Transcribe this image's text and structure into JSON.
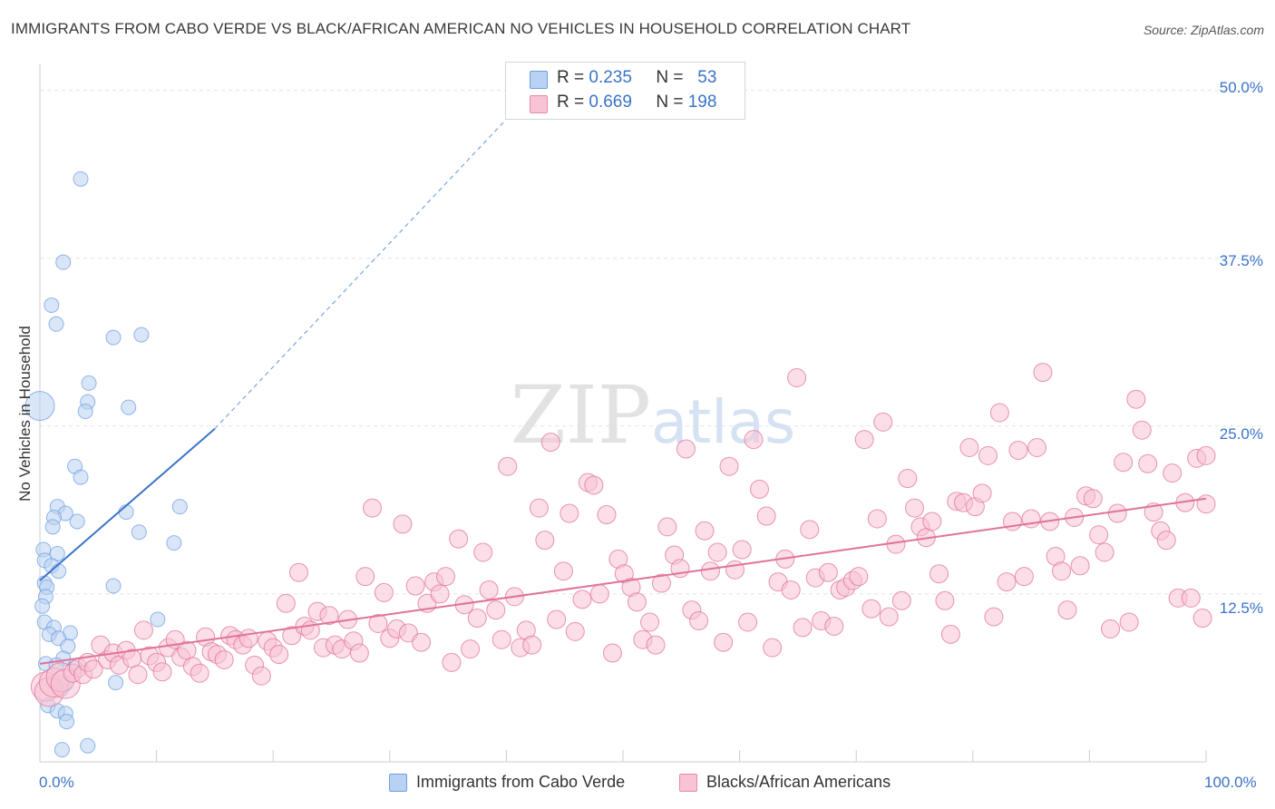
{
  "header": {
    "title": "IMMIGRANTS FROM CABO VERDE VS BLACK/AFRICAN AMERICAN NO VEHICLES IN HOUSEHOLD CORRELATION CHART",
    "source": "Source: ZipAtlas.com"
  },
  "watermark": "ZIPatlas",
  "legend": {
    "r_label": "R =",
    "n_label": "N =",
    "rows": [
      {
        "r": "0.235",
        "n": "53",
        "color": "#b9d1f3",
        "border": "#6f9fe0"
      },
      {
        "r": "0.669",
        "n": "198",
        "color": "#f8c3d4",
        "border": "#e889a8"
      }
    ]
  },
  "bottom_legend": [
    {
      "label": "Immigrants from Cabo Verde"
    },
    {
      "label": "Blacks/African Americans"
    }
  ],
  "chart_data": {
    "type": "scatter",
    "title": "IMMIGRANTS FROM CABO VERDE VS BLACK/AFRICAN AMERICAN NO VEHICLES IN HOUSEHOLD CORRELATION CHART",
    "xlabel": "",
    "ylabel": "No Vehicles in Household",
    "xlim": [
      0,
      100
    ],
    "ylim": [
      0,
      52
    ],
    "x_tick_labels": [
      "0.0%",
      "100.0%"
    ],
    "y_ticks": [
      12.5,
      25.0,
      37.5,
      50.0
    ],
    "y_tick_labels": [
      "12.5%",
      "25.0%",
      "37.5%",
      "50.0%"
    ],
    "grid": true,
    "legend_position": "top-center",
    "series": [
      {
        "name": "Immigrants from Cabo Verde",
        "color": "#6f9fe0",
        "fill": "#b9d1f3",
        "r": 0.235,
        "n": 53,
        "trend": {
          "x": [
            0,
            15
          ],
          "y": [
            13.5,
            24.8
          ],
          "dashed_to": [
            44.5,
            52
          ]
        },
        "points": [
          [
            3.5,
            43.4
          ],
          [
            2.0,
            37.2
          ],
          [
            1.0,
            34.0
          ],
          [
            1.4,
            32.6
          ],
          [
            6.3,
            31.6
          ],
          [
            8.7,
            31.8
          ],
          [
            4.2,
            28.2
          ],
          [
            4.1,
            26.8
          ],
          [
            3.9,
            26.1
          ],
          [
            7.6,
            26.4
          ],
          [
            0.0,
            26.5
          ],
          [
            3.0,
            22.0
          ],
          [
            3.5,
            21.2
          ],
          [
            1.5,
            19.0
          ],
          [
            2.2,
            18.5
          ],
          [
            7.4,
            18.6
          ],
          [
            12.0,
            19.0
          ],
          [
            1.2,
            18.2
          ],
          [
            1.1,
            17.5
          ],
          [
            3.2,
            17.9
          ],
          [
            8.5,
            17.1
          ],
          [
            11.5,
            16.3
          ],
          [
            0.3,
            15.8
          ],
          [
            1.5,
            15.5
          ],
          [
            0.4,
            15.0
          ],
          [
            1.0,
            14.6
          ],
          [
            1.6,
            14.2
          ],
          [
            0.4,
            13.3
          ],
          [
            0.6,
            13.0
          ],
          [
            6.3,
            13.1
          ],
          [
            0.5,
            12.3
          ],
          [
            0.2,
            11.6
          ],
          [
            10.1,
            10.6
          ],
          [
            0.4,
            10.4
          ],
          [
            1.2,
            10.0
          ],
          [
            2.6,
            9.6
          ],
          [
            0.8,
            9.5
          ],
          [
            1.6,
            9.2
          ],
          [
            2.4,
            8.6
          ],
          [
            2.0,
            7.7
          ],
          [
            0.5,
            7.3
          ],
          [
            1.4,
            7.2
          ],
          [
            3.0,
            7.0
          ],
          [
            1.2,
            6.0
          ],
          [
            2.2,
            5.8
          ],
          [
            1.8,
            5.4
          ],
          [
            6.5,
            5.9
          ],
          [
            0.7,
            4.2
          ],
          [
            1.5,
            3.8
          ],
          [
            2.2,
            3.6
          ],
          [
            2.3,
            3.0
          ],
          [
            4.1,
            1.2
          ],
          [
            1.9,
            0.9
          ]
        ]
      },
      {
        "name": "Blacks/African Americans",
        "color": "#e0729b",
        "fill": "#f8c3d4",
        "r": 0.669,
        "n": 198,
        "trend": {
          "x": [
            0,
            100
          ],
          "y": [
            7.3,
            19.6
          ]
        },
        "points": [
          [
            0.5,
            5.6
          ],
          [
            0.8,
            5.2
          ],
          [
            1.2,
            5.9
          ],
          [
            1.8,
            6.3
          ],
          [
            2.2,
            5.8
          ],
          [
            2.8,
            6.6
          ],
          [
            3.3,
            7.0
          ],
          [
            3.7,
            6.5
          ],
          [
            4.1,
            7.4
          ],
          [
            4.6,
            6.9
          ],
          [
            5.2,
            8.7
          ],
          [
            5.8,
            7.6
          ],
          [
            6.3,
            8.1
          ],
          [
            6.8,
            7.2
          ],
          [
            7.4,
            8.3
          ],
          [
            7.9,
            7.7
          ],
          [
            8.4,
            6.5
          ],
          [
            8.9,
            9.8
          ],
          [
            9.4,
            7.9
          ],
          [
            10.0,
            7.4
          ],
          [
            10.5,
            6.7
          ],
          [
            11.0,
            8.5
          ],
          [
            11.6,
            9.1
          ],
          [
            12.1,
            7.8
          ],
          [
            12.6,
            8.3
          ],
          [
            13.1,
            7.1
          ],
          [
            13.7,
            6.6
          ],
          [
            14.2,
            9.3
          ],
          [
            14.7,
            8.2
          ],
          [
            15.2,
            8.0
          ],
          [
            15.8,
            7.6
          ],
          [
            16.3,
            9.4
          ],
          [
            16.8,
            9.1
          ],
          [
            17.4,
            8.7
          ],
          [
            17.9,
            9.2
          ],
          [
            18.4,
            7.2
          ],
          [
            19.0,
            6.4
          ],
          [
            19.5,
            9.0
          ],
          [
            20.0,
            8.5
          ],
          [
            20.5,
            8.0
          ],
          [
            21.1,
            11.8
          ],
          [
            21.6,
            9.4
          ],
          [
            22.2,
            14.1
          ],
          [
            22.7,
            10.1
          ],
          [
            23.2,
            9.8
          ],
          [
            23.8,
            11.2
          ],
          [
            24.3,
            8.5
          ],
          [
            24.8,
            10.9
          ],
          [
            25.3,
            8.7
          ],
          [
            25.9,
            8.4
          ],
          [
            26.4,
            10.6
          ],
          [
            26.9,
            9.0
          ],
          [
            27.4,
            8.1
          ],
          [
            27.9,
            13.8
          ],
          [
            28.5,
            18.9
          ],
          [
            29.0,
            10.3
          ],
          [
            29.5,
            12.6
          ],
          [
            30.0,
            9.2
          ],
          [
            30.6,
            9.9
          ],
          [
            31.1,
            17.7
          ],
          [
            31.6,
            9.6
          ],
          [
            32.2,
            13.1
          ],
          [
            32.7,
            8.9
          ],
          [
            33.2,
            11.8
          ],
          [
            33.8,
            13.4
          ],
          [
            34.3,
            12.5
          ],
          [
            34.8,
            13.8
          ],
          [
            35.3,
            7.4
          ],
          [
            35.9,
            16.6
          ],
          [
            36.4,
            11.7
          ],
          [
            36.9,
            8.4
          ],
          [
            37.5,
            10.7
          ],
          [
            38.0,
            15.6
          ],
          [
            38.5,
            12.8
          ],
          [
            39.1,
            11.3
          ],
          [
            39.6,
            9.1
          ],
          [
            40.1,
            22.0
          ],
          [
            40.7,
            12.3
          ],
          [
            41.2,
            8.5
          ],
          [
            41.7,
            9.8
          ],
          [
            42.2,
            8.7
          ],
          [
            42.8,
            18.9
          ],
          [
            43.3,
            16.5
          ],
          [
            43.8,
            23.8
          ],
          [
            44.3,
            10.6
          ],
          [
            44.9,
            14.2
          ],
          [
            45.4,
            18.5
          ],
          [
            45.9,
            9.7
          ],
          [
            46.5,
            12.1
          ],
          [
            47.0,
            20.8
          ],
          [
            47.5,
            20.6
          ],
          [
            48.0,
            12.5
          ],
          [
            48.6,
            18.4
          ],
          [
            49.1,
            8.1
          ],
          [
            49.6,
            15.1
          ],
          [
            50.1,
            14.0
          ],
          [
            50.7,
            13.0
          ],
          [
            51.2,
            11.9
          ],
          [
            51.7,
            9.1
          ],
          [
            52.3,
            10.4
          ],
          [
            52.8,
            8.7
          ],
          [
            53.3,
            13.3
          ],
          [
            53.8,
            17.5
          ],
          [
            54.4,
            15.4
          ],
          [
            54.9,
            14.4
          ],
          [
            55.4,
            23.3
          ],
          [
            55.9,
            11.3
          ],
          [
            56.5,
            10.5
          ],
          [
            57.0,
            17.2
          ],
          [
            57.5,
            14.2
          ],
          [
            58.1,
            15.6
          ],
          [
            58.6,
            8.9
          ],
          [
            59.1,
            22.0
          ],
          [
            59.6,
            14.3
          ],
          [
            60.2,
            15.8
          ],
          [
            60.7,
            10.4
          ],
          [
            61.2,
            24.0
          ],
          [
            61.7,
            20.3
          ],
          [
            62.3,
            18.3
          ],
          [
            62.8,
            8.5
          ],
          [
            63.3,
            13.4
          ],
          [
            63.9,
            15.1
          ],
          [
            64.4,
            12.8
          ],
          [
            64.9,
            28.6
          ],
          [
            65.4,
            10.0
          ],
          [
            66.0,
            17.3
          ],
          [
            66.5,
            13.7
          ],
          [
            67.0,
            10.5
          ],
          [
            67.6,
            14.1
          ],
          [
            68.1,
            10.1
          ],
          [
            68.6,
            12.8
          ],
          [
            69.1,
            13.0
          ],
          [
            69.7,
            13.5
          ],
          [
            70.2,
            13.8
          ],
          [
            70.7,
            24.0
          ],
          [
            71.3,
            11.4
          ],
          [
            71.8,
            18.1
          ],
          [
            72.3,
            25.3
          ],
          [
            72.8,
            10.8
          ],
          [
            73.4,
            16.2
          ],
          [
            73.9,
            12.0
          ],
          [
            74.4,
            21.1
          ],
          [
            75.0,
            18.9
          ],
          [
            75.5,
            17.5
          ],
          [
            76.0,
            16.7
          ],
          [
            76.5,
            17.9
          ],
          [
            77.1,
            14.0
          ],
          [
            77.6,
            12.0
          ],
          [
            78.1,
            9.5
          ],
          [
            78.6,
            19.4
          ],
          [
            79.2,
            19.3
          ],
          [
            79.7,
            23.4
          ],
          [
            80.2,
            19.0
          ],
          [
            80.8,
            20.0
          ],
          [
            81.3,
            22.8
          ],
          [
            81.8,
            10.8
          ],
          [
            82.3,
            26.0
          ],
          [
            82.9,
            13.4
          ],
          [
            83.4,
            17.9
          ],
          [
            83.9,
            23.2
          ],
          [
            84.4,
            13.8
          ],
          [
            85.0,
            18.1
          ],
          [
            85.5,
            23.4
          ],
          [
            86.0,
            29.0
          ],
          [
            86.6,
            17.9
          ],
          [
            87.1,
            15.3
          ],
          [
            87.6,
            14.2
          ],
          [
            88.1,
            11.3
          ],
          [
            88.7,
            18.2
          ],
          [
            89.2,
            14.6
          ],
          [
            89.7,
            19.8
          ],
          [
            90.3,
            19.6
          ],
          [
            90.8,
            16.9
          ],
          [
            91.3,
            15.6
          ],
          [
            91.8,
            9.9
          ],
          [
            92.4,
            18.5
          ],
          [
            92.9,
            22.3
          ],
          [
            93.4,
            10.4
          ],
          [
            94.0,
            27.0
          ],
          [
            94.5,
            24.7
          ],
          [
            95.0,
            22.2
          ],
          [
            95.5,
            18.6
          ],
          [
            96.1,
            17.2
          ],
          [
            96.6,
            16.5
          ],
          [
            97.1,
            21.5
          ],
          [
            97.6,
            12.2
          ],
          [
            98.2,
            19.3
          ],
          [
            98.7,
            12.2
          ],
          [
            99.2,
            22.6
          ],
          [
            99.7,
            10.7
          ],
          [
            100.0,
            19.2
          ],
          [
            100.0,
            22.8
          ]
        ]
      }
    ]
  }
}
